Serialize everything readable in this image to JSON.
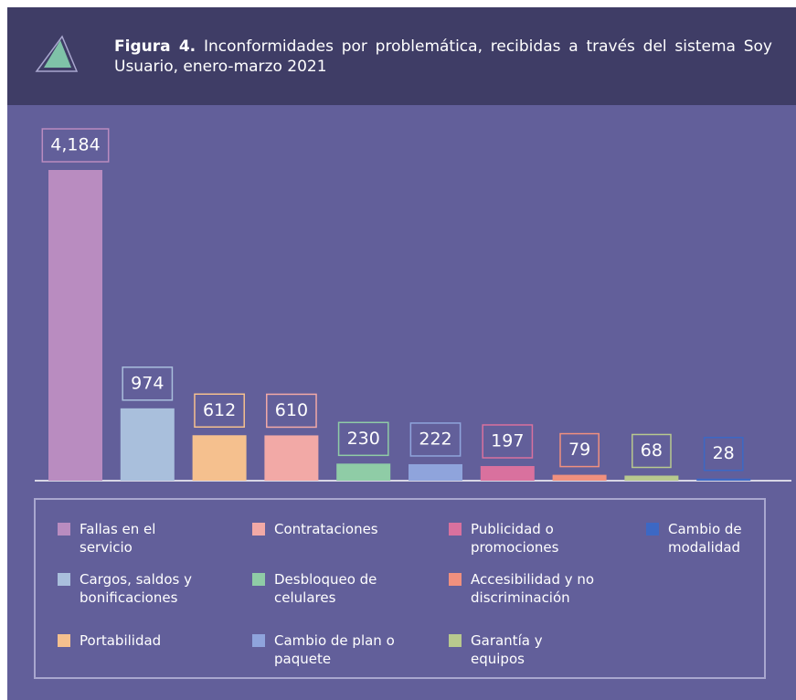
{
  "chart_data": {
    "type": "bar",
    "title_label": "Figura 4.",
    "title": "Inconformidades por problemática, recibidas a través del sistema Soy Usuario, enero-marzo 2021",
    "categories": [
      "Fallas en el servicio",
      "Cargos, saldos y bonificaciones",
      "Portabilidad",
      "Contrataciones",
      "Desbloqueo de celulares",
      "Cambio de plan o paquete",
      "Publicidad o promociones",
      "Accesibilidad y no discriminación",
      "Garantía y equipos",
      "Cambio de modalidad"
    ],
    "values": [
      4184,
      974,
      612,
      610,
      230,
      222,
      197,
      79,
      68,
      28
    ],
    "value_labels": [
      "4,184",
      "974",
      "612",
      "610",
      "230",
      "222",
      "197",
      "79",
      "68",
      "28"
    ],
    "colors": [
      "#b98cc0",
      "#a9bfdc",
      "#f5c08e",
      "#f2a9a6",
      "#8fcca6",
      "#8fa4dc",
      "#d9719e",
      "#f0907e",
      "#b8c98e",
      "#3c68c4"
    ]
  }
}
